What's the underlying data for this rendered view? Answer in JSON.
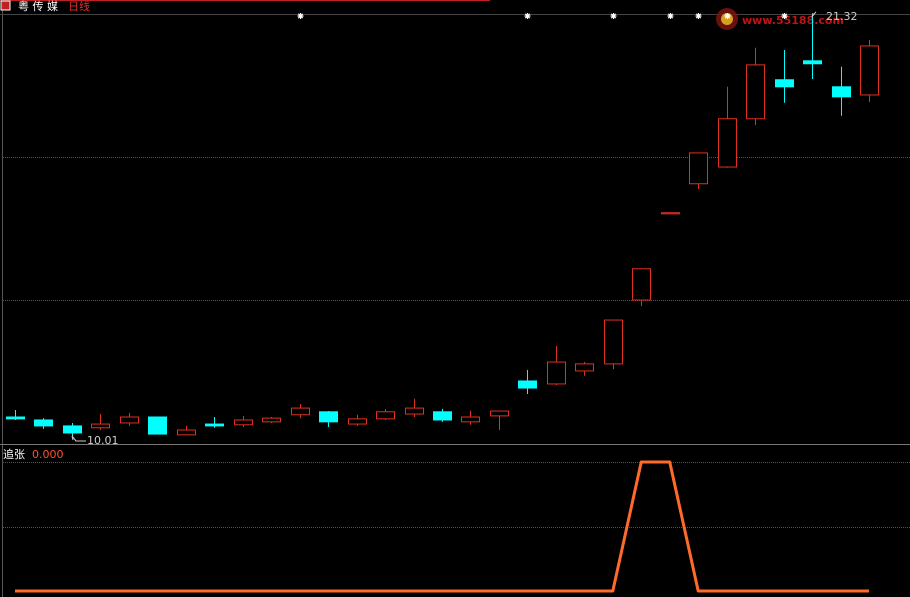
{
  "header": {
    "stock": "粤 传 媒",
    "period": "日线"
  },
  "watermark": "www.55188.com",
  "chart_data": [
    {
      "type": "candlestick",
      "open": [
        10.52,
        10.44,
        10.28,
        10.23,
        10.36,
        10.52,
        10.04,
        10.33,
        10.31,
        10.39,
        10.58,
        10.66,
        10.33,
        10.47,
        10.6,
        10.66,
        10.39,
        10.55,
        11.49,
        11.41,
        11.76,
        11.95,
        13.67,
        15.99,
        16.8,
        17.25,
        18.55,
        19.6,
        20.11,
        19.41,
        19.19
      ],
      "high": [
        10.71,
        10.49,
        10.36,
        10.6,
        10.63,
        10.52,
        10.28,
        10.52,
        10.55,
        10.52,
        10.87,
        10.68,
        10.58,
        10.74,
        11.01,
        10.74,
        10.68,
        10.68,
        11.79,
        12.43,
        12.0,
        13.13,
        14.51,
        16.02,
        17.63,
        19.41,
        20.46,
        20.4,
        21.32,
        19.95,
        20.67
      ],
      "low": [
        10.44,
        10.2,
        10.01,
        10.17,
        10.28,
        10.06,
        10.03,
        10.23,
        10.25,
        10.36,
        10.49,
        10.25,
        10.28,
        10.44,
        10.52,
        10.39,
        10.31,
        10.17,
        11.14,
        11.38,
        11.63,
        11.81,
        13.51,
        15.99,
        16.66,
        17.23,
        18.38,
        18.98,
        19.62,
        18.63,
        19.0
      ],
      "close": [
        10.47,
        10.28,
        10.09,
        10.33,
        10.52,
        10.06,
        10.17,
        10.28,
        10.44,
        10.49,
        10.76,
        10.39,
        10.47,
        10.66,
        10.76,
        10.44,
        10.52,
        10.68,
        11.3,
        12.0,
        11.95,
        13.13,
        14.51,
        16.02,
        17.63,
        18.55,
        20.0,
        19.41,
        20.03,
        19.14,
        20.51
      ],
      "up_color": "#e0301e",
      "down_color": "#00ffff",
      "ylim": [
        9.82,
        21.37
      ],
      "grid": [
        13.67,
        17.52
      ],
      "min_label": "10.01",
      "max_label": "21.32",
      "signals": [
        0,
        0,
        0,
        0,
        0,
        0,
        0,
        0,
        0,
        0,
        1,
        0,
        0,
        0,
        0,
        0,
        0,
        0,
        1,
        0,
        0,
        1,
        0,
        1,
        1,
        1,
        0,
        1,
        0,
        0,
        0
      ],
      "signal_color": "#ffffff"
    },
    {
      "type": "line",
      "name": "追张",
      "value_label": "0.000",
      "values": [
        0,
        0,
        0,
        0,
        0,
        0,
        0,
        0,
        0,
        0,
        0,
        0,
        0,
        0,
        0,
        0,
        0,
        0,
        0,
        0,
        0,
        0,
        1,
        1,
        0,
        0,
        0,
        0,
        0,
        0,
        0
      ],
      "color": "#ff6a2a",
      "ylim": [
        0,
        1
      ],
      "grid": [
        0.5,
        1
      ]
    }
  ]
}
